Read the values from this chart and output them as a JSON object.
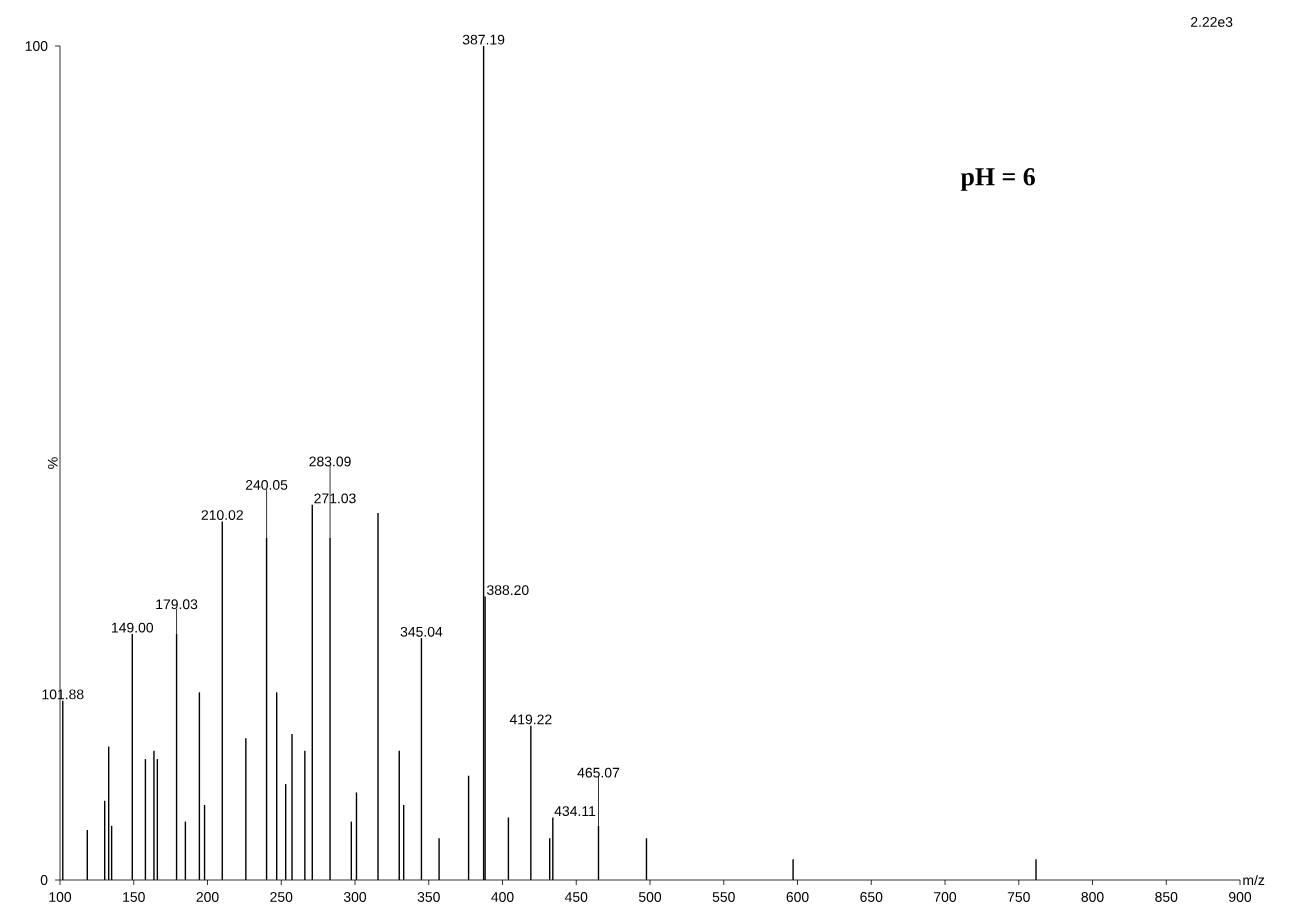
{
  "chart_data": {
    "type": "bar",
    "xlabel": "m/z",
    "ylabel": "%",
    "x": [
      101.88,
      118.5,
      130.3,
      133,
      135,
      149.0,
      157.9,
      163.7,
      166,
      179.03,
      185,
      194.5,
      198,
      210.02,
      226,
      240.05,
      246.9,
      253,
      257.3,
      266,
      271.03,
      283.09,
      297.5,
      301,
      315.6,
      330,
      333,
      345.04,
      357,
      377,
      387.19,
      388.2,
      404,
      419.22,
      432,
      434.11,
      465.07,
      497.6,
      597,
      761.7
    ],
    "series": [
      {
        "color": "#000000",
        "values": [
          21.5,
          6,
          9.5,
          16,
          6.5,
          29.5,
          14.5,
          15.5,
          14.5,
          29.5,
          7,
          22.5,
          9,
          43,
          17,
          41,
          22.5,
          11.5,
          17.5,
          15.5,
          45,
          41,
          7,
          10.5,
          44,
          15.5,
          9,
          29,
          5,
          12.5,
          100,
          34,
          7.5,
          18.5,
          5,
          7.5,
          6.5,
          5,
          2.5,
          2.5
        ]
      }
    ],
    "xlim": [
      100,
      900
    ],
    "ylim": [
      0,
      100
    ],
    "xticks": [
      100,
      150,
      200,
      250,
      300,
      350,
      400,
      450,
      500,
      550,
      600,
      650,
      700,
      750,
      800,
      850,
      900
    ],
    "yticks": [
      0,
      100
    ],
    "annotations": [
      "2.22e3",
      "pH = 6",
      {
        "text": "101.88",
        "x": 101.88,
        "y": 21.5
      },
      {
        "text": "149.00",
        "x": 149.0,
        "y": 29.5
      },
      {
        "text": "179.03",
        "x": 179.03,
        "y": 29.5
      },
      {
        "text": "210.02",
        "x": 210.02,
        "y": 43
      },
      {
        "text": "240.05",
        "x": 240.05,
        "y": 41
      },
      {
        "text": "271.03",
        "x": 271.03,
        "y": 45
      },
      {
        "text": "283.09",
        "x": 283.09,
        "y": 41
      },
      {
        "text": "345.04",
        "x": 345.04,
        "y": 29
      },
      {
        "text": "387.19",
        "x": 387.19,
        "y": 100
      },
      {
        "text": "388.20",
        "x": 388.2,
        "y": 34
      },
      {
        "text": "419.22",
        "x": 419.22,
        "y": 18.5
      },
      {
        "text": "434.11",
        "x": 434.11,
        "y": 7.5
      },
      {
        "text": "465.07",
        "x": 465.07,
        "y": 6.5
      }
    ],
    "grid": false
  }
}
